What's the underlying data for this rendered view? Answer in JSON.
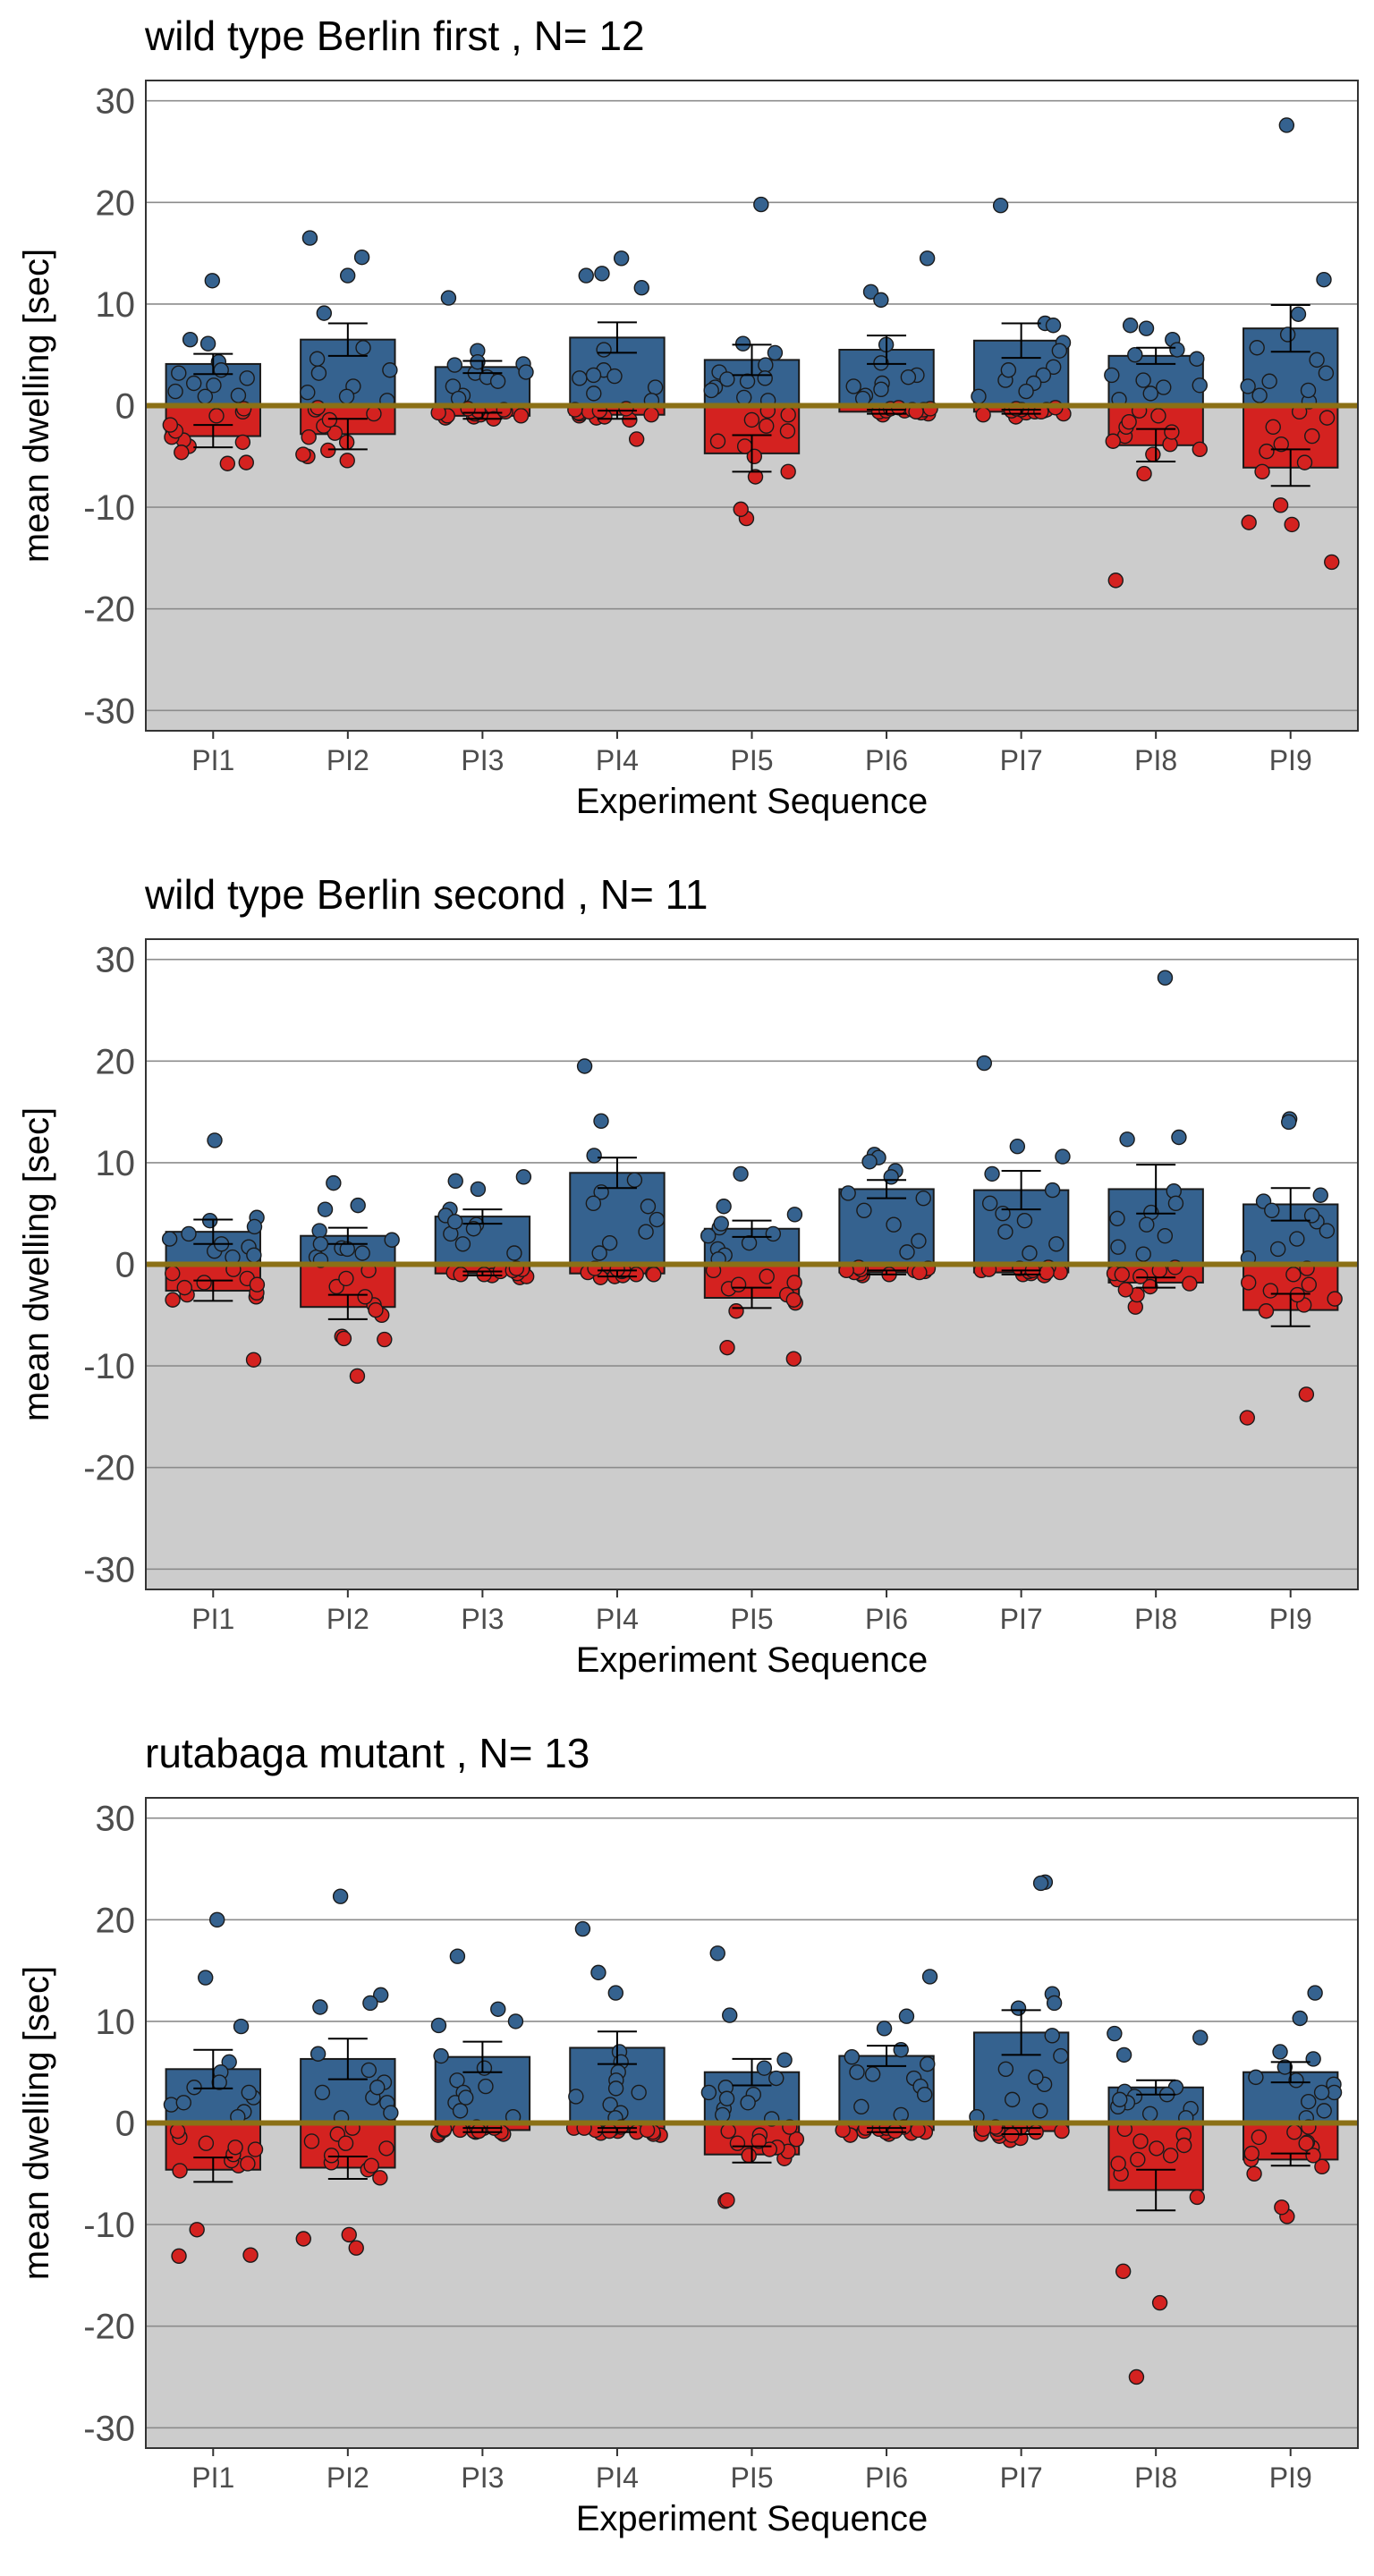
{
  "chart_data": [
    {
      "type": "bar",
      "title": "wild type Berlin first , N= 12",
      "xlabel": "Experiment Sequence",
      "ylabel": "mean dwelling [sec]",
      "ylim": [
        -32,
        32
      ],
      "yticks": [
        -30,
        -20,
        -10,
        0,
        10,
        20,
        30
      ],
      "categories": [
        "PI1",
        "PI2",
        "PI3",
        "PI4",
        "PI5",
        "PI6",
        "PI7",
        "PI8",
        "PI9"
      ],
      "series": [
        {
          "color": "#35628f",
          "values": [
            4.1,
            6.5,
            3.8,
            6.7,
            4.5,
            5.5,
            6.4,
            4.9,
            7.6
          ],
          "err": [
            1.0,
            1.6,
            0.6,
            1.5,
            1.5,
            1.4,
            1.7,
            0.8,
            2.3
          ],
          "points": [
            [
              12.3,
              4.3,
              3.2,
              6.5,
              6.1,
              2.0,
              1.4,
              2.7,
              3.5,
              0.9,
              2.2,
              1.0
            ],
            [
              14.6,
              16.5,
              12.8,
              9.1,
              5.7,
              4.6,
              1.9,
              0.9,
              3.2,
              1.3,
              0.5,
              3.5
            ],
            [
              10.6,
              5.4,
              4.1,
              4.0,
              3.2,
              2.8,
              2.4,
              1.0,
              1.9,
              3.3,
              4.3,
              0.7
            ],
            [
              14.5,
              13.0,
              12.8,
              11.6,
              5.5,
              3.5,
              2.7,
              1.8,
              1.2,
              0.5,
              2.9,
              3.0
            ],
            [
              19.8,
              6.1,
              5.2,
              4.0,
              3.3,
              2.6,
              2.4,
              1.8,
              1.5,
              0.8,
              0.5,
              2.7
            ],
            [
              14.5,
              11.2,
              10.4,
              6.0,
              4.2,
              3.0,
              2.2,
              1.6,
              1.0,
              0.7,
              2.8,
              1.9
            ],
            [
              19.7,
              8.1,
              7.9,
              6.2,
              5.4,
              3.8,
              3.0,
              2.2,
              1.4,
              0.9,
              2.5,
              3.5
            ],
            [
              7.9,
              7.6,
              6.5,
              5.5,
              5.0,
              4.6,
              3.0,
              2.5,
              1.8,
              1.2,
              0.6,
              2.0
            ],
            [
              27.6,
              12.4,
              9.0,
              7.0,
              5.7,
              4.5,
              3.2,
              2.4,
              1.9,
              1.0,
              0.4,
              1.5
            ]
          ]
        },
        {
          "color": "#d42220",
          "values": [
            -3.0,
            -2.8,
            -1.0,
            -0.9,
            -4.7,
            -0.6,
            -0.6,
            -3.9,
            -6.1
          ],
          "err": [
            1.1,
            1.5,
            0.3,
            0.4,
            1.8,
            0.2,
            0.2,
            1.6,
            1.8
          ],
          "points": [
            [
              -5.7,
              -5.6,
              -4.0,
              -3.6,
              -3.4,
              -3.1,
              -2.5,
              -1.9,
              -1.0,
              -0.6,
              -0.3,
              -4.6
            ],
            [
              -5.4,
              -5.0,
              -4.4,
              -3.6,
              -3.1,
              -2.7,
              -2.0,
              -1.4,
              -0.8,
              -0.4,
              -0.2,
              -4.8
            ],
            [
              -1.3,
              -1.2,
              -1.1,
              -1.0,
              -0.9,
              -0.8,
              -0.7,
              -0.6,
              -0.5,
              -0.4,
              -0.3,
              -1.0
            ],
            [
              -3.3,
              -1.4,
              -1.2,
              -1.1,
              -1.0,
              -0.9,
              -0.8,
              -0.7,
              -0.6,
              -0.5,
              -0.4,
              -0.3
            ],
            [
              -11.1,
              -10.2,
              -7.0,
              -6.5,
              -5.0,
              -4.0,
              -3.5,
              -2.5,
              -2.0,
              -1.4,
              -0.9,
              -0.5
            ],
            [
              -0.9,
              -0.8,
              -0.7,
              -0.6,
              -0.5,
              -0.5,
              -0.4,
              -0.4,
              -0.3,
              -0.3,
              -0.2,
              -0.6
            ],
            [
              -1.1,
              -0.9,
              -0.8,
              -0.7,
              -0.6,
              -0.5,
              -0.5,
              -0.4,
              -0.4,
              -0.3,
              -0.2,
              -0.6
            ],
            [
              -17.2,
              -6.7,
              -4.8,
              -4.3,
              -3.8,
              -3.0,
              -2.6,
              -2.1,
              -1.6,
              -1.0,
              -0.5,
              -3.5
            ],
            [
              -15.4,
              -11.7,
              -11.5,
              -9.8,
              -6.5,
              -5.6,
              -4.5,
              -3.0,
              -2.1,
              -1.2,
              -0.6,
              -3.8
            ]
          ]
        }
      ]
    },
    {
      "type": "bar",
      "title": "wild type Berlin second , N= 11",
      "xlabel": "Experiment Sequence",
      "ylabel": "mean dwelling [sec]",
      "ylim": [
        -32,
        32
      ],
      "yticks": [
        -30,
        -20,
        -10,
        0,
        10,
        20,
        30
      ],
      "categories": [
        "PI1",
        "PI2",
        "PI3",
        "PI4",
        "PI5",
        "PI6",
        "PI7",
        "PI8",
        "PI9"
      ],
      "series": [
        {
          "color": "#35628f",
          "values": [
            3.2,
            2.8,
            4.7,
            9.0,
            3.5,
            7.4,
            7.3,
            7.4,
            5.9
          ],
          "err": [
            1.2,
            0.8,
            0.7,
            1.5,
            0.8,
            0.9,
            1.9,
            2.4,
            1.6
          ],
          "points": [
            [
              12.2,
              4.6,
              4.3,
              3.7,
              2.5,
              1.7,
              1.3,
              0.9,
              0.7,
              2.0,
              3.0
            ],
            [
              8.0,
              5.8,
              5.4,
              3.3,
              2.4,
              1.6,
              1.1,
              0.7,
              0.4,
              2.0,
              1.5
            ],
            [
              8.6,
              8.2,
              7.4,
              5.4,
              4.8,
              3.9,
              3.0,
              2.0,
              1.1,
              3.5,
              4.2
            ],
            [
              19.5,
              14.1,
              10.7,
              8.3,
              7.1,
              5.7,
              4.4,
              3.2,
              2.1,
              1.1,
              6.0
            ],
            [
              8.9,
              5.7,
              4.9,
              3.6,
              2.8,
              2.1,
              1.5,
              0.9,
              0.5,
              3.0,
              4.0
            ],
            [
              10.8,
              10.5,
              10.1,
              9.2,
              8.6,
              7.0,
              5.3,
              3.9,
              2.3,
              1.2,
              6.5
            ],
            [
              19.8,
              11.6,
              10.6,
              8.9,
              7.3,
              6.0,
              4.3,
              3.2,
              2.0,
              1.1,
              5.0
            ],
            [
              28.2,
              12.5,
              12.3,
              7.2,
              5.1,
              3.9,
              2.8,
              1.7,
              1.0,
              6.0,
              4.5
            ],
            [
              14.3,
              14.0,
              6.8,
              6.2,
              5.3,
              4.2,
              3.3,
              2.5,
              1.5,
              0.6,
              4.8
            ]
          ]
        },
        {
          "color": "#d42220",
          "values": [
            -2.6,
            -4.2,
            -0.9,
            -0.9,
            -3.3,
            -0.8,
            -0.8,
            -1.8,
            -4.5
          ],
          "err": [
            1.0,
            1.2,
            0.2,
            0.3,
            1.0,
            0.2,
            0.2,
            0.5,
            1.6
          ],
          "points": [
            [
              -9.4,
              -3.2,
              -3.0,
              -2.8,
              -2.3,
              -1.8,
              -1.4,
              -0.9,
              -0.5,
              -3.5,
              -2.0
            ],
            [
              -11.0,
              -7.4,
              -7.1,
              -7.3,
              -5.0,
              -4.0,
              -3.2,
              -2.2,
              -1.4,
              -0.6,
              -4.5
            ],
            [
              -1.3,
              -1.2,
              -1.1,
              -1.0,
              -0.9,
              -0.8,
              -0.7,
              -0.6,
              -0.5,
              -0.4,
              -1.0
            ],
            [
              -1.3,
              -1.2,
              -1.1,
              -1.0,
              -0.9,
              -0.8,
              -0.7,
              -0.6,
              -0.5,
              -0.4,
              -1.0
            ],
            [
              -9.3,
              -8.2,
              -4.6,
              -3.8,
              -3.0,
              -2.4,
              -1.8,
              -1.2,
              -0.6,
              -2.0,
              -3.5
            ],
            [
              -1.1,
              -1.0,
              -0.9,
              -0.8,
              -0.7,
              -0.6,
              -0.5,
              -0.4,
              -0.3,
              -0.8,
              -0.6
            ],
            [
              -1.1,
              -1.0,
              -0.9,
              -0.8,
              -0.7,
              -0.6,
              -0.5,
              -0.4,
              -0.3,
              -0.8,
              -0.6
            ],
            [
              -4.2,
              -3.0,
              -2.2,
              -1.9,
              -1.5,
              -1.2,
              -0.9,
              -0.6,
              -0.3,
              -2.5,
              -1.0
            ],
            [
              -15.1,
              -12.8,
              -4.6,
              -4.0,
              -3.4,
              -2.6,
              -1.8,
              -1.0,
              -0.4,
              -3.0,
              -2.0
            ]
          ]
        }
      ]
    },
    {
      "type": "bar",
      "title": "rutabaga mutant , N= 13",
      "xlabel": "Experiment Sequence",
      "ylabel": "mean dwelling [sec]",
      "ylim": [
        -32,
        32
      ],
      "yticks": [
        -30,
        -20,
        -10,
        0,
        10,
        20,
        30
      ],
      "categories": [
        "PI1",
        "PI2",
        "PI3",
        "PI4",
        "PI5",
        "PI6",
        "PI7",
        "PI8",
        "PI9"
      ],
      "series": [
        {
          "color": "#35628f",
          "values": [
            5.3,
            6.3,
            6.5,
            7.4,
            5.0,
            6.6,
            8.9,
            3.5,
            5.0
          ],
          "err": [
            1.9,
            2.0,
            1.5,
            1.6,
            1.3,
            1.0,
            2.2,
            0.7,
            1.0
          ],
          "points": [
            [
              20.0,
              14.3,
              9.5,
              6.0,
              5.0,
              3.5,
              2.5,
              1.8,
              1.1,
              0.6,
              2.0,
              3.0,
              4.0
            ],
            [
              22.3,
              12.6,
              11.8,
              11.4,
              6.8,
              5.2,
              4.0,
              3.0,
              2.0,
              1.0,
              0.5,
              2.5,
              3.5
            ],
            [
              16.4,
              11.2,
              10.0,
              9.6,
              6.6,
              5.4,
              4.2,
              3.0,
              2.0,
              1.2,
              0.6,
              2.5,
              3.6
            ],
            [
              19.1,
              14.8,
              12.8,
              7.0,
              6.0,
              5.0,
              4.2,
              3.4,
              2.6,
              1.8,
              1.0,
              0.5,
              3.0
            ],
            [
              16.7,
              10.6,
              6.2,
              5.4,
              4.4,
              3.5,
              2.8,
              2.0,
              1.4,
              0.8,
              0.4,
              2.4,
              3.0
            ],
            [
              14.4,
              10.5,
              9.3,
              7.2,
              6.5,
              5.8,
              5.0,
              4.4,
              3.6,
              2.8,
              1.6,
              0.8,
              4.8
            ],
            [
              23.7,
              23.6,
              12.7,
              11.8,
              11.3,
              8.6,
              6.6,
              5.3,
              3.8,
              2.3,
              1.2,
              0.6,
              4.5
            ],
            [
              8.8,
              8.4,
              6.7,
              3.5,
              3.1,
              2.6,
              2.0,
              1.4,
              0.9,
              0.5,
              2.8,
              1.6,
              2.3
            ],
            [
              12.8,
              10.3,
              7.0,
              6.3,
              5.5,
              4.5,
              3.8,
              3.0,
              2.1,
              1.2,
              0.5,
              4.2,
              3.0
            ]
          ]
        },
        {
          "color": "#d42220",
          "values": [
            -4.6,
            -4.4,
            -0.7,
            -0.7,
            -3.1,
            -0.7,
            -0.8,
            -6.6,
            -3.6
          ],
          "err": [
            1.2,
            1.1,
            0.2,
            0.2,
            0.8,
            0.2,
            0.3,
            2.0,
            0.6
          ],
          "points": [
            [
              -13.0,
              -13.1,
              -10.5,
              -4.7,
              -4.2,
              -3.7,
              -3.1,
              -2.6,
              -2.0,
              -1.4,
              -0.8,
              -4.0,
              -2.4
            ],
            [
              -12.3,
              -11.0,
              -11.4,
              -5.4,
              -4.6,
              -3.9,
              -3.2,
              -2.5,
              -1.8,
              -1.1,
              -0.5,
              -4.2,
              -2.0
            ],
            [
              -1.2,
              -1.1,
              -1.0,
              -0.9,
              -0.9,
              -0.8,
              -0.7,
              -0.7,
              -0.6,
              -0.5,
              -0.5,
              -0.4,
              -0.8
            ],
            [
              -1.2,
              -1.1,
              -1.0,
              -0.9,
              -0.9,
              -0.8,
              -0.7,
              -0.7,
              -0.6,
              -0.5,
              -0.5,
              -0.4,
              -0.8
            ],
            [
              -7.7,
              -7.6,
              -3.5,
              -3.2,
              -2.8,
              -2.4,
              -2.0,
              -1.6,
              -1.2,
              -0.8,
              -0.4,
              -2.6,
              -1.8
            ],
            [
              -1.2,
              -1.1,
              -1.0,
              -0.9,
              -0.9,
              -0.8,
              -0.7,
              -0.7,
              -0.6,
              -0.5,
              -0.5,
              -0.4,
              -0.8
            ],
            [
              -1.7,
              -1.5,
              -1.3,
              -1.1,
              -1.0,
              -0.9,
              -0.8,
              -0.7,
              -0.6,
              -0.5,
              -0.4,
              -1.2,
              -0.6
            ],
            [
              -25.0,
              -17.7,
              -14.6,
              -7.3,
              -5.0,
              -4.0,
              -3.2,
              -2.5,
              -1.8,
              -1.2,
              -0.6,
              -3.6,
              -2.2
            ],
            [
              -9.2,
              -8.3,
              -5.0,
              -4.3,
              -3.6,
              -3.0,
              -2.4,
              -1.9,
              -1.4,
              -0.9,
              -0.4,
              -3.2,
              -2.0
            ]
          ]
        }
      ]
    }
  ]
}
